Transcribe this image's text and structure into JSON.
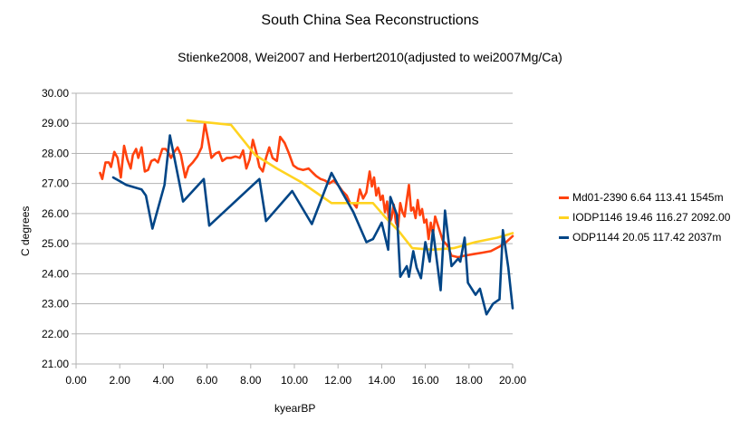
{
  "chart_data": {
    "type": "line",
    "title": "South China Sea Reconstructions",
    "subtitle": "Stienke2008, Wei2007 and Herbert2010(adjusted to wei2007Mg/Ca)",
    "xlabel": "kyearBP",
    "ylabel": "C degrees",
    "xlim": [
      0,
      20
    ],
    "ylim": [
      21,
      30
    ],
    "x_ticks": [
      "0.00",
      "2.00",
      "4.00",
      "6.00",
      "8.00",
      "10.00",
      "12.00",
      "14.00",
      "16.00",
      "18.00",
      "20.00"
    ],
    "y_ticks": [
      "21.00",
      "22.00",
      "23.00",
      "24.00",
      "25.00",
      "26.00",
      "27.00",
      "28.00",
      "29.00",
      "30.00"
    ],
    "gridlines": "horizontal",
    "legend_position": "right",
    "series": [
      {
        "name": "Md01-2390 6.64 113.41 1545m",
        "color": "#ff420e",
        "points": [
          [
            1.1,
            27.35
          ],
          [
            1.2,
            27.15
          ],
          [
            1.35,
            27.7
          ],
          [
            1.5,
            27.7
          ],
          [
            1.6,
            27.55
          ],
          [
            1.75,
            28.05
          ],
          [
            1.9,
            27.85
          ],
          [
            2.05,
            27.2
          ],
          [
            2.2,
            28.25
          ],
          [
            2.35,
            27.8
          ],
          [
            2.5,
            27.5
          ],
          [
            2.6,
            27.95
          ],
          [
            2.75,
            28.15
          ],
          [
            2.85,
            27.85
          ],
          [
            3.0,
            28.2
          ],
          [
            3.15,
            27.4
          ],
          [
            3.3,
            27.45
          ],
          [
            3.45,
            27.75
          ],
          [
            3.6,
            27.8
          ],
          [
            3.75,
            27.7
          ],
          [
            3.95,
            28.15
          ],
          [
            4.1,
            28.15
          ],
          [
            4.25,
            28.0
          ],
          [
            4.35,
            27.85
          ],
          [
            4.5,
            28.05
          ],
          [
            4.65,
            28.2
          ],
          [
            4.8,
            27.95
          ],
          [
            5.0,
            27.2
          ],
          [
            5.15,
            27.55
          ],
          [
            5.35,
            27.7
          ],
          [
            5.55,
            27.9
          ],
          [
            5.75,
            28.2
          ],
          [
            5.9,
            29.0
          ],
          [
            6.05,
            28.45
          ],
          [
            6.2,
            27.85
          ],
          [
            6.4,
            28.0
          ],
          [
            6.55,
            28.05
          ],
          [
            6.7,
            27.75
          ],
          [
            6.9,
            27.85
          ],
          [
            7.1,
            27.85
          ],
          [
            7.3,
            27.9
          ],
          [
            7.5,
            27.85
          ],
          [
            7.65,
            28.1
          ],
          [
            7.8,
            27.5
          ],
          [
            7.95,
            27.8
          ],
          [
            8.1,
            28.45
          ],
          [
            8.25,
            28.05
          ],
          [
            8.4,
            27.55
          ],
          [
            8.55,
            27.4
          ],
          [
            8.7,
            27.85
          ],
          [
            8.85,
            28.2
          ],
          [
            9.0,
            27.85
          ],
          [
            9.2,
            27.75
          ],
          [
            9.35,
            28.55
          ],
          [
            9.55,
            28.35
          ],
          [
            9.75,
            28.0
          ],
          [
            9.95,
            27.6
          ],
          [
            10.15,
            27.5
          ],
          [
            10.4,
            27.45
          ],
          [
            10.65,
            27.5
          ],
          [
            10.85,
            27.35
          ],
          [
            11.0,
            27.25
          ],
          [
            11.2,
            27.15
          ],
          [
            11.4,
            27.1
          ],
          [
            11.6,
            27.0
          ],
          [
            11.8,
            27.1
          ],
          [
            12.0,
            26.95
          ],
          [
            12.2,
            26.75
          ],
          [
            12.4,
            26.6
          ],
          [
            12.55,
            26.35
          ],
          [
            12.7,
            26.35
          ],
          [
            12.85,
            26.2
          ],
          [
            13.0,
            26.8
          ],
          [
            13.15,
            26.5
          ],
          [
            13.3,
            26.7
          ],
          [
            13.45,
            27.4
          ],
          [
            13.55,
            26.9
          ],
          [
            13.65,
            27.2
          ],
          [
            13.75,
            26.6
          ],
          [
            13.85,
            26.85
          ],
          [
            13.95,
            26.45
          ],
          [
            14.05,
            26.6
          ],
          [
            14.15,
            26.05
          ],
          [
            14.25,
            26.4
          ],
          [
            14.35,
            25.65
          ],
          [
            14.45,
            25.85
          ],
          [
            14.55,
            26.3
          ],
          [
            14.65,
            25.7
          ],
          [
            14.75,
            25.55
          ],
          [
            14.85,
            26.35
          ],
          [
            14.95,
            26.05
          ],
          [
            15.05,
            25.9
          ],
          [
            15.15,
            26.45
          ],
          [
            15.25,
            26.95
          ],
          [
            15.35,
            26.1
          ],
          [
            15.45,
            26.2
          ],
          [
            15.55,
            25.85
          ],
          [
            15.65,
            26.45
          ],
          [
            15.75,
            25.95
          ],
          [
            15.85,
            26.15
          ],
          [
            15.95,
            25.7
          ],
          [
            16.05,
            25.8
          ],
          [
            16.15,
            25.15
          ],
          [
            16.25,
            25.7
          ],
          [
            16.35,
            25.3
          ],
          [
            16.45,
            25.9
          ],
          [
            16.6,
            25.55
          ],
          [
            16.8,
            25.1
          ],
          [
            17.0,
            24.95
          ],
          [
            17.2,
            24.6
          ],
          [
            17.5,
            24.55
          ],
          [
            17.8,
            24.6
          ],
          [
            18.2,
            24.65
          ],
          [
            18.6,
            24.7
          ],
          [
            19.0,
            24.75
          ],
          [
            19.4,
            24.9
          ],
          [
            19.7,
            25.05
          ],
          [
            20.0,
            25.25
          ]
        ]
      },
      {
        "name": "IODP1146 19.46 116.27 2092.00",
        "color": "#ffd320",
        "points": [
          [
            5.1,
            29.1
          ],
          [
            7.1,
            28.95
          ],
          [
            8.2,
            27.95
          ],
          [
            9.2,
            27.5
          ],
          [
            10.3,
            27.05
          ],
          [
            11.2,
            26.6
          ],
          [
            11.7,
            26.35
          ],
          [
            12.7,
            26.35
          ],
          [
            13.6,
            26.35
          ],
          [
            14.2,
            25.85
          ],
          [
            14.8,
            25.4
          ],
          [
            15.4,
            24.85
          ],
          [
            16.3,
            24.8
          ],
          [
            17.3,
            24.85
          ],
          [
            18.3,
            25.05
          ],
          [
            19.3,
            25.2
          ],
          [
            20.0,
            25.35
          ]
        ]
      },
      {
        "name": "ODP1144 20.05 117.42 2037m",
        "color": "#004586",
        "points": [
          [
            1.7,
            27.2
          ],
          [
            2.3,
            26.95
          ],
          [
            3.0,
            26.8
          ],
          [
            3.2,
            26.6
          ],
          [
            3.5,
            25.5
          ],
          [
            4.05,
            26.95
          ],
          [
            4.3,
            28.6
          ],
          [
            4.9,
            26.4
          ],
          [
            5.85,
            27.15
          ],
          [
            6.1,
            25.6
          ],
          [
            8.4,
            27.15
          ],
          [
            8.7,
            25.75
          ],
          [
            9.9,
            26.75
          ],
          [
            10.8,
            25.65
          ],
          [
            11.7,
            27.35
          ],
          [
            12.0,
            26.95
          ],
          [
            12.7,
            26.05
          ],
          [
            13.3,
            25.05
          ],
          [
            13.6,
            25.15
          ],
          [
            14.0,
            25.7
          ],
          [
            14.3,
            24.8
          ],
          [
            14.4,
            26.55
          ],
          [
            14.7,
            25.95
          ],
          [
            14.85,
            23.9
          ],
          [
            15.15,
            24.25
          ],
          [
            15.25,
            23.9
          ],
          [
            15.45,
            24.75
          ],
          [
            15.6,
            24.2
          ],
          [
            15.8,
            23.85
          ],
          [
            16.0,
            25.05
          ],
          [
            16.2,
            24.4
          ],
          [
            16.35,
            25.45
          ],
          [
            16.7,
            23.45
          ],
          [
            16.9,
            26.1
          ],
          [
            17.2,
            24.25
          ],
          [
            17.5,
            24.5
          ],
          [
            17.6,
            24.4
          ],
          [
            17.8,
            25.2
          ],
          [
            17.95,
            23.7
          ],
          [
            18.3,
            23.3
          ],
          [
            18.5,
            23.5
          ],
          [
            18.8,
            22.65
          ],
          [
            19.1,
            23.0
          ],
          [
            19.4,
            23.15
          ],
          [
            19.55,
            25.45
          ],
          [
            19.8,
            24.2
          ],
          [
            20.0,
            22.85
          ]
        ]
      }
    ]
  }
}
